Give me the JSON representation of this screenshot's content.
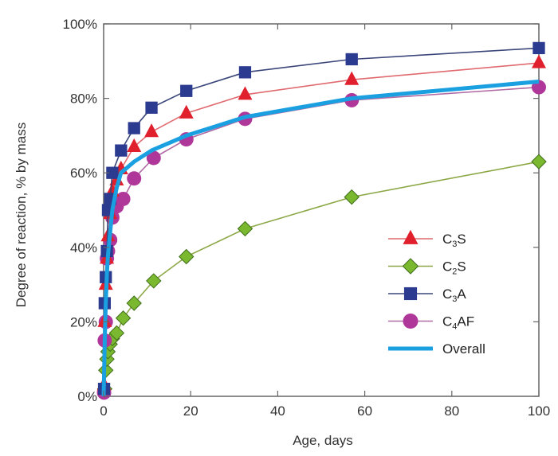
{
  "chart_data": {
    "type": "line",
    "xlabel": "Age, days",
    "ylabel": "Degree of reaction, % by mass",
    "xlim": [
      0,
      100
    ],
    "ylim": [
      0,
      100
    ],
    "x_ticks": [
      "0",
      "20",
      "40",
      "60",
      "80",
      "100"
    ],
    "y_ticks": [
      "0%",
      "20%",
      "40%",
      "60%",
      "80%",
      "100%"
    ],
    "grid": false,
    "legend_position": "lower-right",
    "series": [
      {
        "name": "C3S",
        "formula": {
          "base": "C",
          "sub1": "3",
          "rest": "S",
          "sub2": ""
        },
        "marker": "triangle",
        "color": "#e0202c",
        "line_color": "#e06a70",
        "x": [
          0,
          0.1,
          0.25,
          0.5,
          0.75,
          1,
          1.5,
          2,
          3,
          4,
          7,
          11,
          19,
          32.5,
          57,
          100
        ],
        "y": [
          0,
          3,
          20,
          30,
          37,
          43,
          49,
          55,
          58,
          61,
          67,
          71,
          76,
          81,
          85,
          89.5
        ]
      },
      {
        "name": "C2S",
        "formula": {
          "base": "C",
          "sub1": "2",
          "rest": "S",
          "sub2": ""
        },
        "marker": "diamond",
        "color": "#7ab830",
        "line_color": "#8ca846",
        "x": [
          0,
          0.25,
          0.5,
          0.75,
          1,
          1.5,
          2,
          3,
          4.5,
          7,
          11.5,
          19,
          32.5,
          57,
          100
        ],
        "y": [
          0,
          2,
          7,
          10,
          12,
          14,
          15.5,
          17,
          21,
          25,
          31,
          37.5,
          45,
          53.5,
          63
        ]
      },
      {
        "name": "C3A",
        "formula": {
          "base": "C",
          "sub1": "3",
          "rest": "A",
          "sub2": ""
        },
        "marker": "square",
        "color": "#2b3b8f",
        "line_color": "#3a467a",
        "x": [
          0,
          0.1,
          0.25,
          0.5,
          0.75,
          1,
          1.5,
          2,
          4,
          7,
          11,
          19,
          32.5,
          57,
          100
        ],
        "y": [
          0,
          2,
          25,
          32,
          39,
          50,
          53,
          60,
          66,
          72,
          77.5,
          82,
          87,
          90.5,
          93.5
        ]
      },
      {
        "name": "C4AF",
        "formula": {
          "base": "C",
          "sub1": "4",
          "rest": "AF",
          "sub2": ""
        },
        "marker": "circle",
        "color": "#b0379a",
        "line_color": "#b06aa4",
        "x": [
          0,
          0.1,
          0.25,
          0.5,
          0.75,
          1,
          1.5,
          2,
          3,
          4.5,
          7,
          11.5,
          19,
          32.5,
          57,
          100
        ],
        "y": [
          0,
          1,
          15,
          20,
          37,
          39,
          42,
          48,
          51,
          53,
          58.5,
          64,
          69,
          74.5,
          79.5,
          83
        ]
      },
      {
        "name": "Overall",
        "formula": {
          "base": "Overall",
          "sub1": "",
          "rest": "",
          "sub2": ""
        },
        "marker": "none",
        "color": "#1aa0e0",
        "line_color": "#1aa0e0",
        "thick": true,
        "x": [
          0,
          0.25,
          0.5,
          0.75,
          1,
          1.5,
          2,
          3,
          4,
          7,
          11,
          19,
          32.5,
          57,
          100
        ],
        "y": [
          0,
          15,
          25,
          33,
          38,
          44,
          50,
          56,
          60,
          63,
          66,
          70,
          75,
          80,
          84.5
        ]
      }
    ]
  }
}
